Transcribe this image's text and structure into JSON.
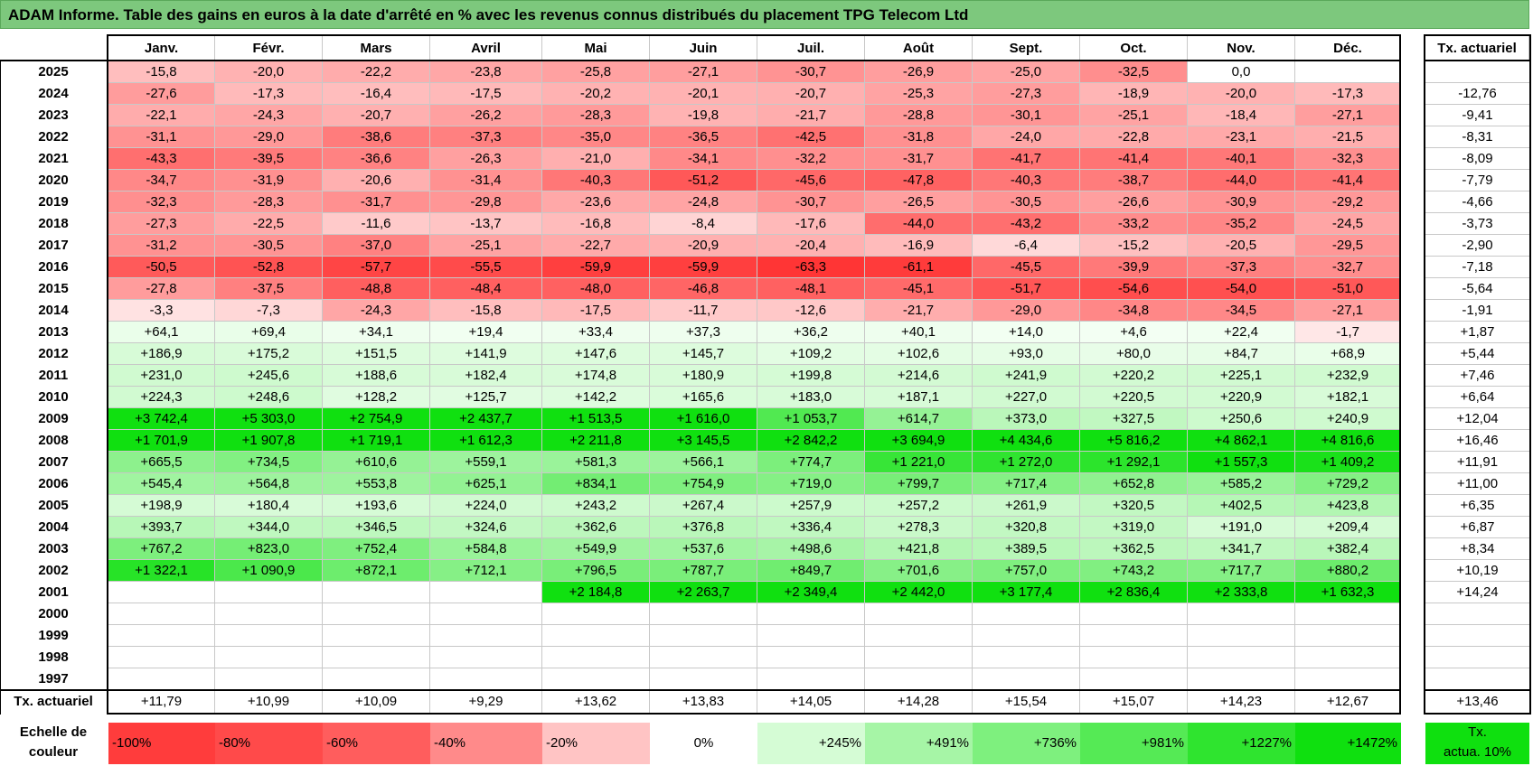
{
  "title": "ADAM Informe. Table des gains en euros à la date d'arrêté en % avec les revenus connus distribués du placement TPG Telecom Ltd",
  "months": [
    "Janv.",
    "Févr.",
    "Mars",
    "Avril",
    "Mai",
    "Juin",
    "Juil.",
    "Août",
    "Sept.",
    "Oct.",
    "Nov.",
    "Déc."
  ],
  "rate_header": "Tx. actuariel",
  "rows": [
    {
      "year": "2025",
      "values": [
        "-15,8",
        "-20,0",
        "-22,2",
        "-23,8",
        "-25,8",
        "-27,1",
        "-30,7",
        "-26,9",
        "-25,0",
        "-32,5",
        "0,0",
        ""
      ],
      "rate": ""
    },
    {
      "year": "2024",
      "values": [
        "-27,6",
        "-17,3",
        "-16,4",
        "-17,5",
        "-20,2",
        "-20,1",
        "-20,7",
        "-25,3",
        "-27,3",
        "-18,9",
        "-20,0",
        "-17,3"
      ],
      "rate": "-12,76"
    },
    {
      "year": "2023",
      "values": [
        "-22,1",
        "-24,3",
        "-20,7",
        "-26,2",
        "-28,3",
        "-19,8",
        "-21,7",
        "-28,8",
        "-30,1",
        "-25,1",
        "-18,4",
        "-27,1"
      ],
      "rate": "-9,41"
    },
    {
      "year": "2022",
      "values": [
        "-31,1",
        "-29,0",
        "-38,6",
        "-37,3",
        "-35,0",
        "-36,5",
        "-42,5",
        "-31,8",
        "-24,0",
        "-22,8",
        "-23,1",
        "-21,5"
      ],
      "rate": "-8,31"
    },
    {
      "year": "2021",
      "values": [
        "-43,3",
        "-39,5",
        "-36,6",
        "-26,3",
        "-21,0",
        "-34,1",
        "-32,2",
        "-31,7",
        "-41,7",
        "-41,4",
        "-40,1",
        "-32,3"
      ],
      "rate": "-8,09"
    },
    {
      "year": "2020",
      "values": [
        "-34,7",
        "-31,9",
        "-20,6",
        "-31,4",
        "-40,3",
        "-51,2",
        "-45,6",
        "-47,8",
        "-40,3",
        "-38,7",
        "-44,0",
        "-41,4"
      ],
      "rate": "-7,79"
    },
    {
      "year": "2019",
      "values": [
        "-32,3",
        "-28,3",
        "-31,7",
        "-29,8",
        "-23,6",
        "-24,8",
        "-30,7",
        "-26,5",
        "-30,5",
        "-26,6",
        "-30,9",
        "-29,2"
      ],
      "rate": "-4,66"
    },
    {
      "year": "2018",
      "values": [
        "-27,3",
        "-22,5",
        "-11,6",
        "-13,7",
        "-16,8",
        "-8,4",
        "-17,6",
        "-44,0",
        "-43,2",
        "-33,2",
        "-35,2",
        "-24,5"
      ],
      "rate": "-3,73"
    },
    {
      "year": "2017",
      "values": [
        "-31,2",
        "-30,5",
        "-37,0",
        "-25,1",
        "-22,7",
        "-20,9",
        "-20,4",
        "-16,9",
        "-6,4",
        "-15,2",
        "-20,5",
        "-29,5"
      ],
      "rate": "-2,90"
    },
    {
      "year": "2016",
      "values": [
        "-50,5",
        "-52,8",
        "-57,7",
        "-55,5",
        "-59,9",
        "-59,9",
        "-63,3",
        "-61,1",
        "-45,5",
        "-39,9",
        "-37,3",
        "-32,7"
      ],
      "rate": "-7,18"
    },
    {
      "year": "2015",
      "values": [
        "-27,8",
        "-37,5",
        "-48,8",
        "-48,4",
        "-48,0",
        "-46,8",
        "-48,1",
        "-45,1",
        "-51,7",
        "-54,6",
        "-54,0",
        "-51,0"
      ],
      "rate": "-5,64"
    },
    {
      "year": "2014",
      "values": [
        "-3,3",
        "-7,3",
        "-24,3",
        "-15,8",
        "-17,5",
        "-11,7",
        "-12,6",
        "-21,7",
        "-29,0",
        "-34,8",
        "-34,5",
        "-27,1"
      ],
      "rate": "-1,91"
    },
    {
      "year": "2013",
      "values": [
        "+64,1",
        "+69,4",
        "+34,1",
        "+19,4",
        "+33,4",
        "+37,3",
        "+36,2",
        "+40,1",
        "+14,0",
        "+4,6",
        "+22,4",
        "-1,7"
      ],
      "rate": "+1,87"
    },
    {
      "year": "2012",
      "values": [
        "+186,9",
        "+175,2",
        "+151,5",
        "+141,9",
        "+147,6",
        "+145,7",
        "+109,2",
        "+102,6",
        "+93,0",
        "+80,0",
        "+84,7",
        "+68,9"
      ],
      "rate": "+5,44"
    },
    {
      "year": "2011",
      "values": [
        "+231,0",
        "+245,6",
        "+188,6",
        "+182,4",
        "+174,8",
        "+180,9",
        "+199,8",
        "+214,6",
        "+241,9",
        "+220,2",
        "+225,1",
        "+232,9"
      ],
      "rate": "+7,46"
    },
    {
      "year": "2010",
      "values": [
        "+224,3",
        "+248,6",
        "+128,2",
        "+125,7",
        "+142,2",
        "+165,6",
        "+183,0",
        "+187,1",
        "+227,0",
        "+220,5",
        "+220,9",
        "+182,1"
      ],
      "rate": "+6,64"
    },
    {
      "year": "2009",
      "values": [
        "+3 742,4",
        "+5 303,0",
        "+2 754,9",
        "+2 437,7",
        "+1 513,5",
        "+1 616,0",
        "+1 053,7",
        "+614,7",
        "+373,0",
        "+327,5",
        "+250,6",
        "+240,9"
      ],
      "rate": "+12,04"
    },
    {
      "year": "2008",
      "values": [
        "+1 701,9",
        "+1 907,8",
        "+1 719,1",
        "+1 612,3",
        "+2 211,8",
        "+3 145,5",
        "+2 842,2",
        "+3 694,9",
        "+4 434,6",
        "+5 816,2",
        "+4 862,1",
        "+4 816,6"
      ],
      "rate": "+16,46"
    },
    {
      "year": "2007",
      "values": [
        "+665,5",
        "+734,5",
        "+610,6",
        "+559,1",
        "+581,3",
        "+566,1",
        "+774,7",
        "+1 221,0",
        "+1 272,0",
        "+1 292,1",
        "+1 557,3",
        "+1 409,2"
      ],
      "rate": "+11,91"
    },
    {
      "year": "2006",
      "values": [
        "+545,4",
        "+564,8",
        "+553,8",
        "+625,1",
        "+834,1",
        "+754,9",
        "+719,0",
        "+799,7",
        "+717,4",
        "+652,8",
        "+585,2",
        "+729,2"
      ],
      "rate": "+11,00"
    },
    {
      "year": "2005",
      "values": [
        "+198,9",
        "+180,4",
        "+193,6",
        "+224,0",
        "+243,2",
        "+267,4",
        "+257,9",
        "+257,2",
        "+261,9",
        "+320,5",
        "+402,5",
        "+423,8"
      ],
      "rate": "+6,35"
    },
    {
      "year": "2004",
      "values": [
        "+393,7",
        "+344,0",
        "+346,5",
        "+324,6",
        "+362,6",
        "+376,8",
        "+336,4",
        "+278,3",
        "+320,8",
        "+319,0",
        "+191,0",
        "+209,4"
      ],
      "rate": "+6,87"
    },
    {
      "year": "2003",
      "values": [
        "+767,2",
        "+823,0",
        "+752,4",
        "+584,8",
        "+549,9",
        "+537,6",
        "+498,6",
        "+421,8",
        "+389,5",
        "+362,5",
        "+341,7",
        "+382,4"
      ],
      "rate": "+8,34"
    },
    {
      "year": "2002",
      "values": [
        "+1 322,1",
        "+1 090,9",
        "+872,1",
        "+712,1",
        "+796,5",
        "+787,7",
        "+849,7",
        "+701,6",
        "+757,0",
        "+743,2",
        "+717,7",
        "+880,2"
      ],
      "rate": "+10,19"
    },
    {
      "year": "2001",
      "values": [
        "",
        "",
        "",
        "",
        "+2 184,8",
        "+2 263,7",
        "+2 349,4",
        "+2 442,0",
        "+3 177,4",
        "+2 836,4",
        "+2 333,8",
        "+1 632,3"
      ],
      "rate": "+14,24"
    },
    {
      "year": "2000",
      "values": [
        "",
        "",
        "",
        "",
        "",
        "",
        "",
        "",
        "",
        "",
        "",
        ""
      ],
      "rate": ""
    },
    {
      "year": "1999",
      "values": [
        "",
        "",
        "",
        "",
        "",
        "",
        "",
        "",
        "",
        "",
        "",
        ""
      ],
      "rate": ""
    },
    {
      "year": "1998",
      "values": [
        "",
        "",
        "",
        "",
        "",
        "",
        "",
        "",
        "",
        "",
        "",
        ""
      ],
      "rate": ""
    },
    {
      "year": "1997",
      "values": [
        "",
        "",
        "",
        "",
        "",
        "",
        "",
        "",
        "",
        "",
        "",
        ""
      ],
      "rate": ""
    }
  ],
  "footer": {
    "label": "Tx. actuariel",
    "values": [
      "+11,79",
      "+10,99",
      "+10,09",
      "+9,29",
      "+13,62",
      "+13,83",
      "+14,05",
      "+14,28",
      "+15,54",
      "+15,07",
      "+14,23",
      "+12,67"
    ],
    "rate": "+13,46"
  },
  "scale": {
    "label_line1": "Echelle de",
    "label_line2": "couleur",
    "items": [
      {
        "text": "-100%",
        "color": "#ff3c3c",
        "align": "left"
      },
      {
        "text": "-80%",
        "color": "#ff4a4a",
        "align": "left"
      },
      {
        "text": "-60%",
        "color": "#ff5d5d",
        "align": "left"
      },
      {
        "text": "-40%",
        "color": "#ff8a8a",
        "align": "left"
      },
      {
        "text": "-20%",
        "color": "#ffc4c4",
        "align": "left"
      },
      {
        "text": "0%",
        "color": "#ffffff",
        "align": "center"
      },
      {
        "text": "+245%",
        "color": "#d5fcd5",
        "align": "right"
      },
      {
        "text": "+491%",
        "color": "#a6f5a6",
        "align": "right"
      },
      {
        "text": "+736%",
        "color": "#7ef07e",
        "align": "right"
      },
      {
        "text": "+981%",
        "color": "#55ea55",
        "align": "right"
      },
      {
        "text": "+1227%",
        "color": "#2fe42f",
        "align": "right"
      },
      {
        "text": "+1472%",
        "color": "#0fe00f",
        "align": "right"
      }
    ],
    "rate_line1": "Tx.",
    "rate_line2": "actua. 10%",
    "rate_color": "#0fe00f"
  }
}
